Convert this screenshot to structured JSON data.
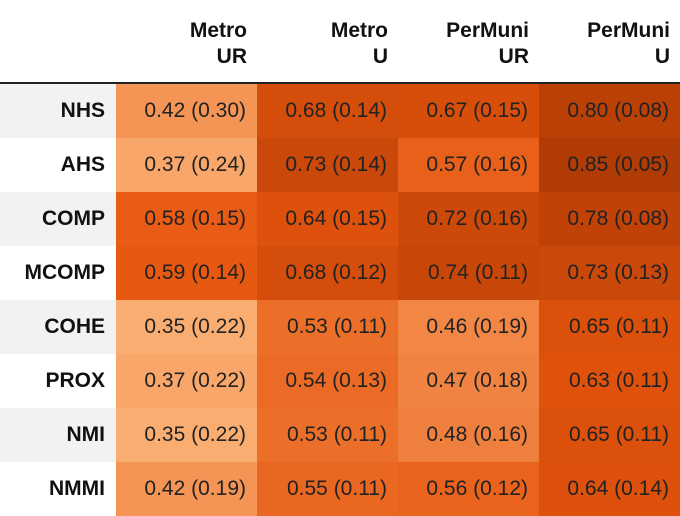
{
  "chart_data": {
    "type": "heatmap",
    "columns": [
      {
        "line1": "Metro",
        "line2": "UR"
      },
      {
        "line1": "Metro",
        "line2": "U"
      },
      {
        "line1": "PerMuni",
        "line2": "UR"
      },
      {
        "line1": "PerMuni",
        "line2": "U"
      }
    ],
    "rows": [
      "NHS",
      "AHS",
      "COMP",
      "MCOMP",
      "COHE",
      "PROX",
      "NMI",
      "NMMI"
    ],
    "values": [
      [
        0.42,
        0.68,
        0.67,
        0.8
      ],
      [
        0.37,
        0.73,
        0.57,
        0.85
      ],
      [
        0.58,
        0.64,
        0.72,
        0.78
      ],
      [
        0.59,
        0.68,
        0.74,
        0.73
      ],
      [
        0.35,
        0.53,
        0.46,
        0.65
      ],
      [
        0.37,
        0.54,
        0.47,
        0.63
      ],
      [
        0.35,
        0.53,
        0.48,
        0.65
      ],
      [
        0.42,
        0.55,
        0.56,
        0.64
      ]
    ],
    "std": [
      [
        0.3,
        0.14,
        0.15,
        0.08
      ],
      [
        0.24,
        0.14,
        0.16,
        0.05
      ],
      [
        0.15,
        0.15,
        0.16,
        0.08
      ],
      [
        0.14,
        0.12,
        0.11,
        0.13
      ],
      [
        0.22,
        0.11,
        0.19,
        0.11
      ],
      [
        0.22,
        0.13,
        0.18,
        0.11
      ],
      [
        0.22,
        0.11,
        0.16,
        0.11
      ],
      [
        0.19,
        0.11,
        0.12,
        0.14
      ]
    ],
    "color_scale": {
      "low_color": "#fdbe85",
      "high_color": "#a63603",
      "vmin": 0.3,
      "vmax": 0.9
    }
  }
}
